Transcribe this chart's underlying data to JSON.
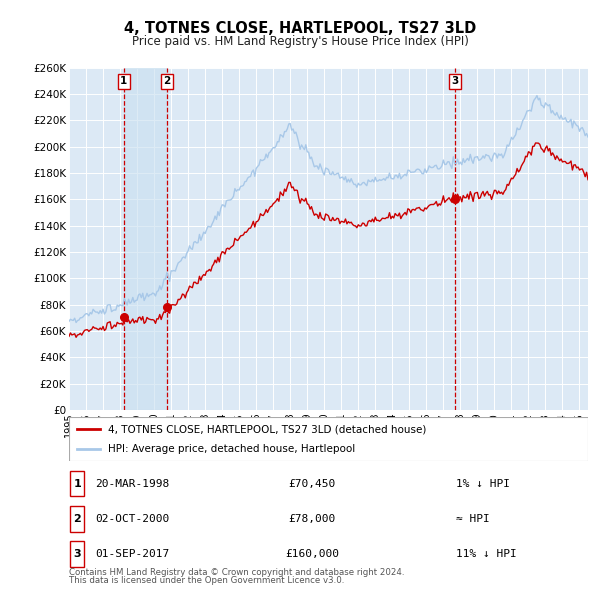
{
  "title": "4, TOTNES CLOSE, HARTLEPOOL, TS27 3LD",
  "subtitle": "Price paid vs. HM Land Registry's House Price Index (HPI)",
  "background_color": "#ffffff",
  "plot_bg_color": "#dce9f5",
  "grid_color": "#ffffff",
  "hpi_color": "#a8c8e8",
  "price_color": "#cc0000",
  "marker_color": "#cc0000",
  "ylim": [
    0,
    260000
  ],
  "yticks": [
    0,
    20000,
    40000,
    60000,
    80000,
    100000,
    120000,
    140000,
    160000,
    180000,
    200000,
    220000,
    240000,
    260000
  ],
  "ytick_labels": [
    "£0",
    "£20K",
    "£40K",
    "£60K",
    "£80K",
    "£100K",
    "£120K",
    "£140K",
    "£160K",
    "£180K",
    "£200K",
    "£220K",
    "£240K",
    "£260K"
  ],
  "xlim_start": 1995.0,
  "xlim_end": 2025.5,
  "xtick_years": [
    1995,
    1996,
    1997,
    1998,
    1999,
    2000,
    2001,
    2002,
    2003,
    2004,
    2005,
    2006,
    2007,
    2008,
    2009,
    2010,
    2011,
    2012,
    2013,
    2014,
    2015,
    2016,
    2017,
    2018,
    2019,
    2020,
    2021,
    2022,
    2023,
    2024,
    2025
  ],
  "sales": [
    {
      "num": 1,
      "date": "20-MAR-1998",
      "price": 70450,
      "x": 1998.22,
      "hpi_diff": "1% ↓ HPI"
    },
    {
      "num": 2,
      "date": "02-OCT-2000",
      "price": 78000,
      "x": 2000.75,
      "hpi_diff": "≈ HPI"
    },
    {
      "num": 3,
      "date": "01-SEP-2017",
      "price": 160000,
      "x": 2017.67,
      "hpi_diff": "11% ↓ HPI"
    }
  ],
  "legend_label_price": "4, TOTNES CLOSE, HARTLEPOOL, TS27 3LD (detached house)",
  "legend_label_hpi": "HPI: Average price, detached house, Hartlepool",
  "footnote_line1": "Contains HM Land Registry data © Crown copyright and database right 2024.",
  "footnote_line2": "This data is licensed under the Open Government Licence v3.0.",
  "vline_color": "#cc0000",
  "shade_color": "#c8dff0"
}
